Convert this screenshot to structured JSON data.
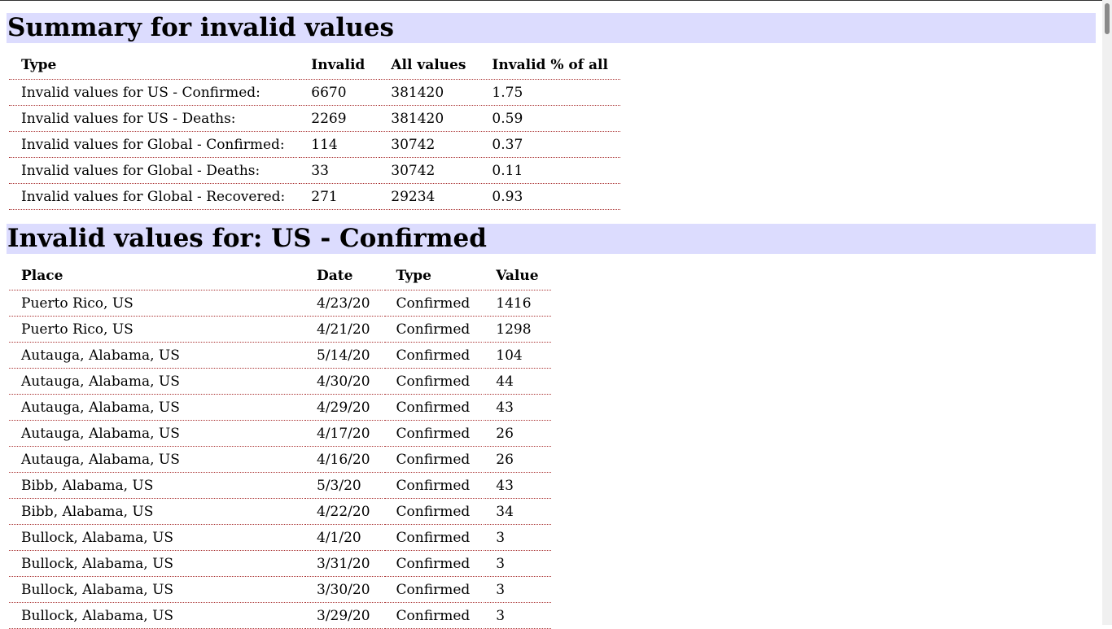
{
  "summary": {
    "heading": "Summary for invalid values",
    "columns": [
      "Type",
      "Invalid",
      "All values",
      "Invalid % of all"
    ],
    "rows": [
      [
        "Invalid values for US - Confirmed:",
        "6670",
        "381420",
        "1.75"
      ],
      [
        "Invalid values for US - Deaths:",
        "2269",
        "381420",
        "0.59"
      ],
      [
        "Invalid values for Global - Confirmed:",
        "114",
        "30742",
        "0.37"
      ],
      [
        "Invalid values for Global - Deaths:",
        "33",
        "30742",
        "0.11"
      ],
      [
        "Invalid values for Global - Recovered:",
        "271",
        "29234",
        "0.93"
      ]
    ]
  },
  "us_confirmed": {
    "heading": "Invalid values for: US - Confirmed",
    "columns": [
      "Place",
      "Date",
      "Type",
      "Value"
    ],
    "rows": [
      [
        "Puerto Rico, US",
        "4/23/20",
        "Confirmed",
        "1416"
      ],
      [
        "Puerto Rico, US",
        "4/21/20",
        "Confirmed",
        "1298"
      ],
      [
        "Autauga, Alabama, US",
        "5/14/20",
        "Confirmed",
        "104"
      ],
      [
        "Autauga, Alabama, US",
        "4/30/20",
        "Confirmed",
        "44"
      ],
      [
        "Autauga, Alabama, US",
        "4/29/20",
        "Confirmed",
        "43"
      ],
      [
        "Autauga, Alabama, US",
        "4/17/20",
        "Confirmed",
        "26"
      ],
      [
        "Autauga, Alabama, US",
        "4/16/20",
        "Confirmed",
        "26"
      ],
      [
        "Bibb, Alabama, US",
        "5/3/20",
        "Confirmed",
        "43"
      ],
      [
        "Bibb, Alabama, US",
        "4/22/20",
        "Confirmed",
        "34"
      ],
      [
        "Bullock, Alabama, US",
        "4/1/20",
        "Confirmed",
        "3"
      ],
      [
        "Bullock, Alabama, US",
        "3/31/20",
        "Confirmed",
        "3"
      ],
      [
        "Bullock, Alabama, US",
        "3/30/20",
        "Confirmed",
        "3"
      ],
      [
        "Bullock, Alabama, US",
        "3/29/20",
        "Confirmed",
        "3"
      ]
    ]
  },
  "colors": {
    "heading_background": "#dcdcfe",
    "row_divider": "#aa3333"
  }
}
